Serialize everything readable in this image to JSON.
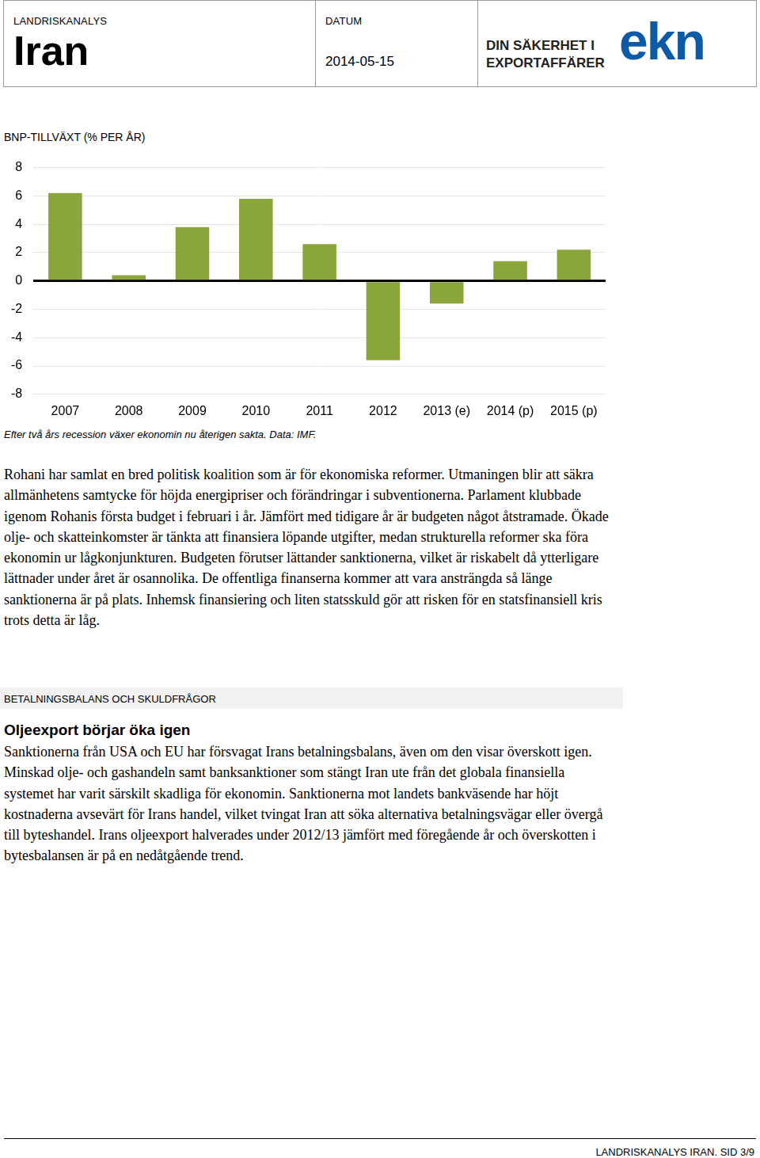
{
  "header": {
    "label": "LANDRISKANALYS",
    "country": "Iran",
    "date_label": "DATUM",
    "date": "2014-05-15",
    "logo_lines": [
      "DIN SÄKERHET I",
      "EXPORTAFFÄRER"
    ],
    "logo_mark": "ekn"
  },
  "chart_data": {
    "type": "bar",
    "title": "BNP-TILLVÄXT (% PER ÅR)",
    "categories": [
      "2007",
      "2008",
      "2009",
      "2010",
      "2011",
      "2012",
      "2013 (e)",
      "2014 (p)",
      "2015 (p)"
    ],
    "values": [
      6.2,
      0.4,
      3.8,
      5.8,
      2.6,
      -5.6,
      -1.6,
      1.4,
      2.2
    ],
    "color": "#8aa53a",
    "ylim": [
      -8,
      8
    ],
    "yticks": [
      -8,
      -6,
      -4,
      -2,
      0,
      2,
      4,
      6,
      8
    ],
    "grid": true
  },
  "chart_caption": "Efter två års recession växer ekonomin nu återigen sakta. Data: IMF.",
  "paragraph_1": "Rohani har samlat en bred politisk koalition som är för ekonomiska reformer. Utmaningen blir att säkra allmänhetens samtycke för höjda energipriser och förändringar i subventionerna. Parlament klubbade igenom Rohanis första budget i februari i år. Jämfört med tidigare år är budgeten något åtstramade. Ökade olje- och skatteinkomster är tänkta att finansiera löpande utgifter, medan strukturella reformer ska föra ekonomin ur lågkonjunkturen. Budgeten förutser lättander sanktionerna, vilket är riskabelt då ytterligare lättnader under året är osannolika. De offentliga finanserna kommer att vara ansträngda så länge sanktionerna är på plats. Inhemsk finansiering och liten statsskuld gör att risken för en statsfinansiell kris trots detta är låg.",
  "section": {
    "label": "BETALNINGSBALANS OCH SKULDFRÅGOR",
    "heading": "Oljeexport börjar öka igen",
    "paragraph": "Sanktionerna från USA och EU har försvagat Irans betalningsbalans, även om den visar överskott igen. Minskad olje- och gashandeln samt banksanktioner som stängt Iran ute från det globala finansiella systemet har varit särskilt skadliga för ekonomin. Sanktionerna mot landets bankväsende har höjt kostnaderna avsevärt för Irans handel, vilket tvingat Iran att söka alternativa betalningsvägar eller övergå till byteshandel. Irans oljeexport halverades under 2012/13 jämfört med föregående år och överskotten i bytesbalansen är på en nedåtgående trend."
  },
  "footer": "LANDRISKANALYS IRAN. SID 3/9"
}
